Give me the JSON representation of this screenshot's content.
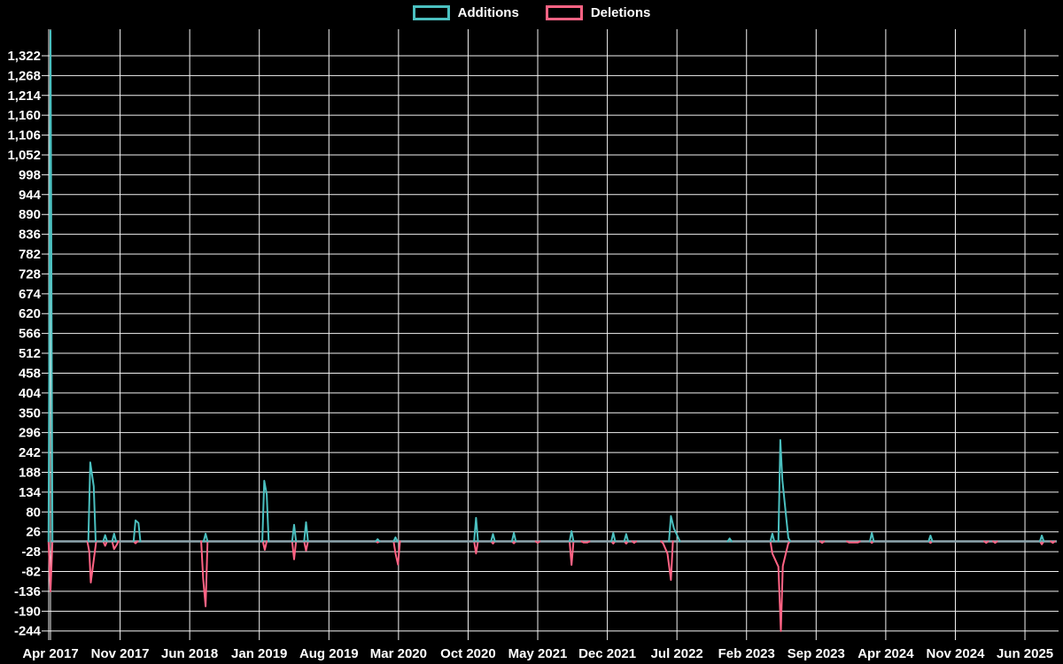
{
  "chart_data": {
    "type": "line",
    "title": "",
    "description": "Repository code-frequency style chart: weekly additions (teal) and deletions (red) over time on a black background",
    "background_color": "#000000",
    "grid_color": "#f2f2f2",
    "baseline_color": "#8fa7b0",
    "text_color": "#ffffff",
    "legend": [
      {
        "label": "Additions",
        "color": "#4BC0C0"
      },
      {
        "label": "Deletions",
        "color": "#FF6384"
      }
    ],
    "x_axis": {
      "tick_labels": [
        "Apr 2017",
        "Nov 2017",
        "Jun 2018",
        "Jan 2019",
        "Aug 2019",
        "Mar 2020",
        "Oct 2020",
        "May 2021",
        "Dec 2021",
        "Jul 2022",
        "Feb 2023",
        "Sep 2023",
        "Apr 2024",
        "Nov 2024",
        "Jun 2025"
      ],
      "months_per_tick": 7,
      "end_month_offset": 101.2
    },
    "y_axis": {
      "min": -244,
      "max": 1322,
      "step": 54,
      "tick_labels": [
        "-244",
        "-190",
        "-136",
        "-82",
        "-28",
        "26",
        "80",
        "134",
        "188",
        "242",
        "296",
        "350",
        "404",
        "458",
        "512",
        "566",
        "620",
        "674",
        "728",
        "782",
        "836",
        "890",
        "944",
        "998",
        "1,052",
        "1,106",
        "1,160",
        "1,214",
        "1,268",
        "1,322"
      ]
    },
    "series": [
      {
        "name": "Additions",
        "color": "#4BC0C0",
        "points": [
          [
            0,
            1390
          ],
          [
            4,
            215
          ],
          [
            4.35,
            150
          ],
          [
            5.5,
            17
          ],
          [
            6.4,
            21
          ],
          [
            8.55,
            57
          ],
          [
            8.85,
            50
          ],
          [
            15.6,
            21
          ],
          [
            21.5,
            165
          ],
          [
            21.75,
            128
          ],
          [
            24.5,
            45
          ],
          [
            25.7,
            52
          ],
          [
            32.9,
            6
          ],
          [
            34.7,
            11
          ],
          [
            42.8,
            64
          ],
          [
            44.5,
            20
          ],
          [
            46.6,
            23
          ],
          [
            52.4,
            28
          ],
          [
            56.6,
            23
          ],
          [
            57.9,
            20
          ],
          [
            62.4,
            69
          ],
          [
            62.7,
            35
          ],
          [
            63.1,
            12
          ],
          [
            68.3,
            8
          ],
          [
            72.6,
            21
          ],
          [
            73.4,
            276
          ],
          [
            73.6,
            167
          ],
          [
            74.2,
            10
          ],
          [
            82.6,
            23
          ],
          [
            88.5,
            16
          ],
          [
            99.7,
            16
          ]
        ]
      },
      {
        "name": "Deletions",
        "color": "#FF6384",
        "points": [
          [
            0,
            -136
          ],
          [
            3.9,
            -28
          ],
          [
            4.05,
            -112
          ],
          [
            4.4,
            -40
          ],
          [
            5.5,
            -12
          ],
          [
            6.4,
            -21
          ],
          [
            6.65,
            -10
          ],
          [
            8.55,
            -5
          ],
          [
            15.35,
            -100
          ],
          [
            15.6,
            -177
          ],
          [
            21.55,
            -23
          ],
          [
            24.5,
            -49
          ],
          [
            25.7,
            -25
          ],
          [
            32.9,
            -3
          ],
          [
            34.7,
            -33
          ],
          [
            34.95,
            -63
          ],
          [
            42.8,
            -33
          ],
          [
            44.5,
            -6
          ],
          [
            46.6,
            -5
          ],
          [
            49,
            -4
          ],
          [
            52.4,
            -64
          ],
          [
            53.6,
            -3
          ],
          [
            54,
            -3
          ],
          [
            56.6,
            -6
          ],
          [
            57.9,
            -6
          ],
          [
            58.7,
            -4
          ],
          [
            61.6,
            -5
          ],
          [
            62.05,
            -33
          ],
          [
            62.4,
            -105
          ],
          [
            72.6,
            -33
          ],
          [
            73.2,
            -69
          ],
          [
            73.45,
            -244
          ],
          [
            73.65,
            -67
          ],
          [
            74.2,
            -5
          ],
          [
            77.6,
            -4
          ],
          [
            80.3,
            -3
          ],
          [
            80.8,
            -3
          ],
          [
            81.2,
            -3
          ],
          [
            82.6,
            -4
          ],
          [
            88.5,
            -4
          ],
          [
            94.1,
            -4
          ],
          [
            95,
            -4
          ],
          [
            99.7,
            -8
          ],
          [
            100.8,
            -4
          ]
        ]
      }
    ]
  }
}
